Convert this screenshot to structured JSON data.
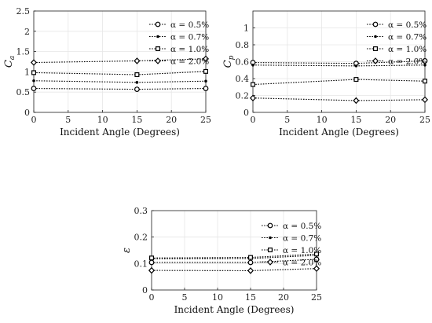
{
  "chart_data": [
    {
      "type": "line",
      "x": [
        0,
        15,
        25
      ],
      "xlabel": "Incident Angle (Degrees)",
      "ylabel_main": "C",
      "ylabel_sub": "a",
      "xlim": [
        0,
        25
      ],
      "ylim": [
        0,
        2.5
      ],
      "xticks": [
        "0",
        "5",
        "10",
        "15",
        "20",
        "25"
      ],
      "yticks": [
        "0",
        "0.5",
        "1",
        "1.5",
        "2",
        "2.5"
      ],
      "grid": true,
      "legend_position": "top-right",
      "series": [
        {
          "name": "α = 0.5%",
          "marker": "circle",
          "values": [
            0.59,
            0.57,
            0.59
          ]
        },
        {
          "name": "α = 0.7%",
          "marker": "dot",
          "values": [
            0.78,
            0.74,
            0.77
          ]
        },
        {
          "name": "α = 1.0%",
          "marker": "square",
          "values": [
            0.98,
            0.93,
            1.01
          ]
        },
        {
          "name": "α = 2.0%",
          "marker": "diamond",
          "values": [
            1.23,
            1.27,
            1.32
          ]
        }
      ]
    },
    {
      "type": "line",
      "x": [
        0,
        15,
        25
      ],
      "xlabel": "Incident Angle (Degrees)",
      "ylabel_main": "C",
      "ylabel_sub": "p",
      "xlim": [
        0,
        25
      ],
      "ylim": [
        0,
        1.2
      ],
      "xticks": [
        "0",
        "5",
        "10",
        "15",
        "20",
        "25"
      ],
      "yticks": [
        "0",
        "0.2",
        "0.4",
        "0.6",
        "0.8",
        "1"
      ],
      "grid": true,
      "legend_position": "top-right",
      "series": [
        {
          "name": "α = 0.5%",
          "marker": "circle",
          "values": [
            0.59,
            0.58,
            0.61
          ]
        },
        {
          "name": "α = 0.7%",
          "marker": "dot",
          "values": [
            0.56,
            0.55,
            0.56
          ]
        },
        {
          "name": "α = 1.0%",
          "marker": "square",
          "values": [
            0.33,
            0.39,
            0.37
          ]
        },
        {
          "name": "α = 2.0%",
          "marker": "diamond",
          "values": [
            0.17,
            0.14,
            0.15
          ]
        }
      ]
    },
    {
      "type": "line",
      "x": [
        0,
        15,
        25
      ],
      "xlabel": "Incident Angle (Degrees)",
      "ylabel_main": "ε",
      "ylabel_sub": "",
      "xlim": [
        0,
        25
      ],
      "ylim": [
        0,
        0.3
      ],
      "xticks": [
        "0",
        "5",
        "10",
        "15",
        "20",
        "25"
      ],
      "yticks": [
        "0",
        "0.1",
        "0.2",
        "0.3"
      ],
      "grid": true,
      "legend_position": "top-right",
      "series": [
        {
          "name": "α = 0.5%",
          "marker": "circle",
          "values": [
            0.104,
            0.104,
            0.116
          ]
        },
        {
          "name": "α = 0.7%",
          "marker": "dot",
          "values": [
            0.118,
            0.119,
            0.131
          ]
        },
        {
          "name": "α = 1.0%",
          "marker": "square",
          "values": [
            0.121,
            0.123,
            0.136
          ]
        },
        {
          "name": "α = 2.0%",
          "marker": "diamond",
          "values": [
            0.074,
            0.073,
            0.081
          ]
        }
      ]
    }
  ]
}
